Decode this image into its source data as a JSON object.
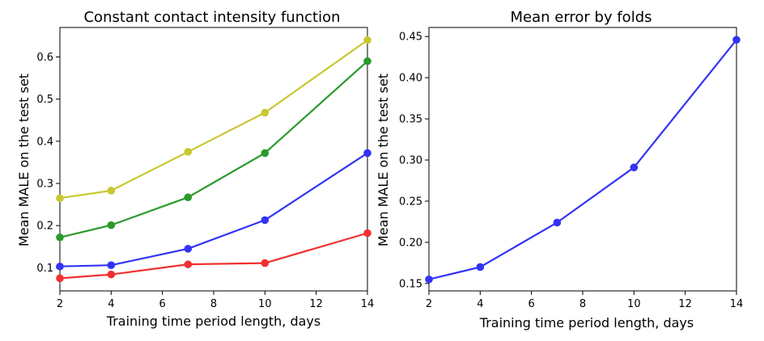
{
  "chart_data": [
    {
      "type": "line",
      "title": "Constant contact intensity function",
      "xlabel": "Training time period length, days",
      "ylabel": "Mean MALE on the test set",
      "xlim": [
        2,
        14
      ],
      "ylim": [
        0.045,
        0.67
      ],
      "grid": false,
      "x": [
        2,
        4,
        7,
        10,
        14
      ],
      "xticks": [
        2,
        4,
        6,
        8,
        10,
        12,
        14
      ],
      "yticks": [
        0.1,
        0.2,
        0.3,
        0.4,
        0.5,
        0.6
      ],
      "xtick_labels": [
        "2",
        "4",
        "6",
        "8",
        "10",
        "12",
        "14"
      ],
      "ytick_labels": [
        "0.1",
        "0.2",
        "0.3",
        "0.4",
        "0.5",
        "0.6"
      ],
      "series": [
        {
          "color": "#c8c832",
          "values": [
            0.265,
            0.283,
            0.375,
            0.468,
            0.64
          ]
        },
        {
          "color": "#2a9a2a",
          "values": [
            0.172,
            0.201,
            0.267,
            0.372,
            0.59
          ]
        },
        {
          "color": "#3333f5",
          "values": [
            0.103,
            0.106,
            0.145,
            0.213,
            0.372
          ]
        },
        {
          "color": "#f03030",
          "values": [
            0.075,
            0.084,
            0.108,
            0.111,
            0.182
          ]
        }
      ]
    },
    {
      "type": "line",
      "title": "Mean error by folds",
      "xlabel": "Training time period length, days",
      "ylabel": "Mean MALE on the test set",
      "xlim": [
        2,
        14
      ],
      "ylim": [
        0.141,
        0.461
      ],
      "grid": false,
      "x": [
        2,
        4,
        7,
        10,
        14
      ],
      "xticks": [
        2,
        4,
        6,
        8,
        10,
        12,
        14
      ],
      "yticks": [
        0.15,
        0.2,
        0.25,
        0.3,
        0.35,
        0.4,
        0.45
      ],
      "xtick_labels": [
        "2",
        "4",
        "6",
        "8",
        "10",
        "12",
        "14"
      ],
      "ytick_labels": [
        "0.15",
        "0.20",
        "0.25",
        "0.30",
        "0.35",
        "0.40",
        "0.45"
      ],
      "series": [
        {
          "color": "#3333f5",
          "values": [
            0.155,
            0.17,
            0.224,
            0.291,
            0.446
          ]
        }
      ]
    }
  ]
}
